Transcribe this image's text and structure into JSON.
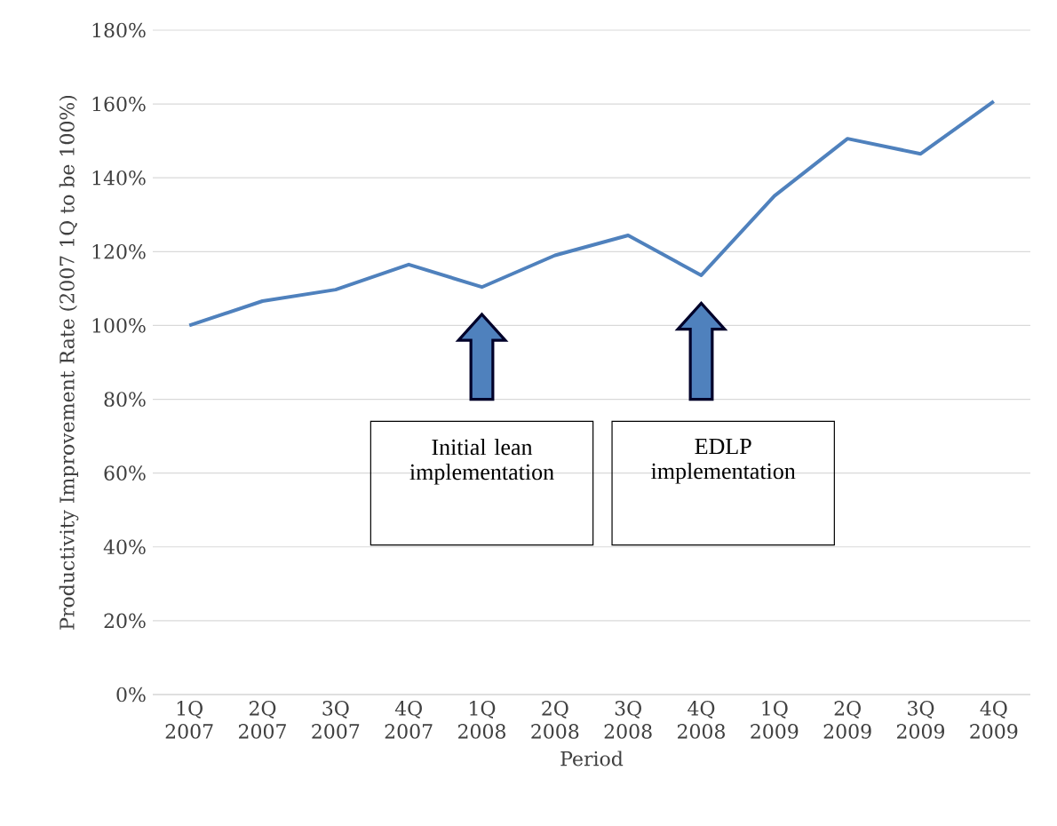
{
  "chart_data": {
    "type": "line",
    "xlabel": "Period",
    "ylabel": "Productivity Improvement Rate (2007 1Q to be 100%)",
    "categories": [
      "1Q 2007",
      "2Q 2007",
      "3Q 2007",
      "4Q 2007",
      "1Q 2008",
      "2Q 2008",
      "3Q 2008",
      "4Q 2008",
      "1Q 2009",
      "2Q 2009",
      "3Q 2009",
      "4Q 2009"
    ],
    "values": [
      100,
      106.6,
      109.7,
      116.5,
      110.4,
      119,
      124.4,
      113.6,
      135.1,
      150.6,
      146.5,
      160.7
    ],
    "color": "#4f81bd",
    "ylim": [
      0,
      180
    ],
    "yticks": [
      {
        "value": 0,
        "label": "0%"
      },
      {
        "value": 20,
        "label": "20%"
      },
      {
        "value": 40,
        "label": "40%"
      },
      {
        "value": 60,
        "label": "60%"
      },
      {
        "value": 80,
        "label": "80%"
      },
      {
        "value": 100,
        "label": "100%"
      },
      {
        "value": 120,
        "label": "120%"
      },
      {
        "value": 140,
        "label": "140%"
      },
      {
        "value": 160,
        "label": "160%"
      },
      {
        "value": 180,
        "label": "180%"
      }
    ],
    "grid": "y",
    "marker": "none",
    "line_style": "solid",
    "annotations": [
      "Initial lean implementation",
      "EDLP implementation"
    ]
  }
}
